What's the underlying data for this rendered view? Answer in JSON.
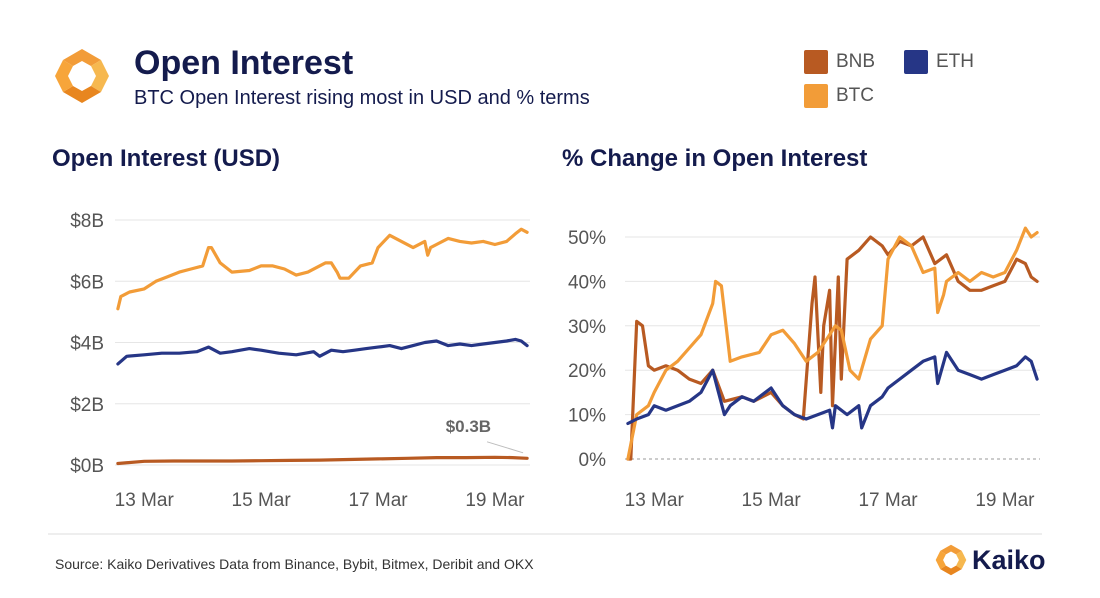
{
  "header": {
    "title": "Open Interest",
    "subtitle": "BTC Open Interest rising most in USD and % terms"
  },
  "colors": {
    "BNB": "#b85a22",
    "ETH": "#263686",
    "BTC": "#f29c38",
    "navy": "#141b4d",
    "grid": "#e6e6e6"
  },
  "legend": [
    {
      "label": "BNB",
      "color": "#b85a22"
    },
    {
      "label": "ETH",
      "color": "#263686"
    },
    {
      "label": "BTC",
      "color": "#f29c38"
    }
  ],
  "footer": {
    "source": "Source: Kaiko Derivatives Data from Binance, Bybit, Bitmex, Deribit and OKX",
    "brand": "Kaiko"
  },
  "chart_data": [
    {
      "type": "line",
      "title": "Open Interest (USD)",
      "x_ticks": [
        "13 Mar",
        "15 Mar",
        "17 Mar",
        "19 Mar"
      ],
      "x_tick_days": [
        13,
        15,
        17,
        19
      ],
      "xlim": [
        12.5,
        19.6
      ],
      "y_ticks": [
        "$0B",
        "$2B",
        "$4B",
        "$6B",
        "$8B"
      ],
      "y_tick_values": [
        0,
        2,
        4,
        6,
        8
      ],
      "ylim": [
        0,
        8
      ],
      "grid": true,
      "annotations": [
        {
          "text": "$0.3B",
          "series": "BNB",
          "value": 0.3
        }
      ],
      "series": [
        {
          "name": "BTC",
          "x": [
            12.55,
            12.6,
            12.75,
            13.0,
            13.2,
            13.4,
            13.6,
            13.8,
            14.0,
            14.1,
            14.15,
            14.3,
            14.5,
            14.8,
            15.0,
            15.2,
            15.4,
            15.6,
            15.8,
            16.0,
            16.1,
            16.2,
            16.3,
            16.35,
            16.5,
            16.7,
            16.9,
            17.0,
            17.2,
            17.4,
            17.6,
            17.8,
            17.85,
            17.9,
            18.0,
            18.2,
            18.4,
            18.6,
            18.8,
            19.0,
            19.2,
            19.35,
            19.45,
            19.55
          ],
          "values": [
            5.1,
            5.5,
            5.65,
            5.75,
            6.0,
            6.15,
            6.3,
            6.4,
            6.5,
            7.1,
            7.1,
            6.6,
            6.3,
            6.35,
            6.5,
            6.5,
            6.4,
            6.2,
            6.3,
            6.5,
            6.6,
            6.6,
            6.3,
            6.1,
            6.1,
            6.5,
            6.6,
            7.1,
            7.5,
            7.3,
            7.1,
            7.3,
            6.85,
            7.1,
            7.2,
            7.4,
            7.3,
            7.25,
            7.3,
            7.2,
            7.3,
            7.55,
            7.7,
            7.6
          ]
        },
        {
          "name": "ETH",
          "x": [
            12.55,
            12.7,
            13.0,
            13.3,
            13.6,
            13.9,
            14.1,
            14.3,
            14.5,
            14.8,
            15.0,
            15.3,
            15.6,
            15.9,
            16.0,
            16.2,
            16.4,
            16.6,
            16.8,
            17.0,
            17.2,
            17.4,
            17.6,
            17.8,
            18.0,
            18.2,
            18.4,
            18.6,
            18.8,
            19.0,
            19.2,
            19.35,
            19.45,
            19.55
          ],
          "values": [
            3.3,
            3.55,
            3.6,
            3.65,
            3.65,
            3.7,
            3.85,
            3.65,
            3.7,
            3.8,
            3.75,
            3.65,
            3.6,
            3.7,
            3.55,
            3.75,
            3.7,
            3.75,
            3.8,
            3.85,
            3.9,
            3.8,
            3.9,
            4.0,
            4.05,
            3.9,
            3.95,
            3.9,
            3.95,
            4.0,
            4.05,
            4.1,
            4.05,
            3.9
          ]
        },
        {
          "name": "BNB",
          "x": [
            12.55,
            13.0,
            13.5,
            14.0,
            14.5,
            15.0,
            15.5,
            16.0,
            16.5,
            17.0,
            17.5,
            18.0,
            18.5,
            19.0,
            19.3,
            19.55
          ],
          "values": [
            0.05,
            0.12,
            0.13,
            0.13,
            0.13,
            0.14,
            0.15,
            0.16,
            0.18,
            0.2,
            0.22,
            0.24,
            0.24,
            0.25,
            0.24,
            0.22
          ]
        }
      ]
    },
    {
      "type": "line",
      "title": "% Change in Open Interest",
      "x_ticks": [
        "13 Mar",
        "15 Mar",
        "17 Mar",
        "19 Mar"
      ],
      "x_tick_days": [
        13,
        15,
        17,
        19
      ],
      "xlim": [
        12.5,
        19.6
      ],
      "y_ticks": [
        "0%",
        "10%",
        "20%",
        "30%",
        "40%",
        "50%"
      ],
      "y_tick_values": [
        0,
        10,
        20,
        30,
        40,
        50
      ],
      "ylim": [
        0,
        50
      ],
      "zero_line": "dashed",
      "grid": true,
      "series": [
        {
          "name": "BNB",
          "x": [
            12.55,
            12.6,
            12.7,
            12.8,
            12.9,
            13.0,
            13.2,
            13.4,
            13.6,
            13.8,
            14.0,
            14.2,
            14.5,
            14.7,
            15.0,
            15.2,
            15.4,
            15.55,
            15.7,
            15.75,
            15.85,
            15.9,
            16.0,
            16.05,
            16.15,
            16.2,
            16.3,
            16.5,
            16.7,
            16.9,
            17.0,
            17.2,
            17.4,
            17.6,
            17.8,
            18.0,
            18.2,
            18.4,
            18.6,
            18.8,
            19.0,
            19.2,
            19.35,
            19.45,
            19.55
          ],
          "values": [
            0,
            0,
            31,
            30,
            21,
            20,
            21,
            20,
            18,
            17,
            20,
            13,
            14,
            13,
            15,
            12,
            10,
            9,
            35,
            41,
            15,
            30,
            38,
            12,
            41,
            18,
            45,
            47,
            50,
            48,
            46,
            49,
            48,
            50,
            44,
            46,
            40,
            38,
            38,
            39,
            40,
            45,
            44,
            41,
            40
          ]
        },
        {
          "name": "BTC",
          "x": [
            12.55,
            12.7,
            12.9,
            13.0,
            13.2,
            13.4,
            13.6,
            13.8,
            14.0,
            14.05,
            14.15,
            14.3,
            14.5,
            14.8,
            15.0,
            15.2,
            15.4,
            15.6,
            15.8,
            16.0,
            16.1,
            16.2,
            16.35,
            16.5,
            16.7,
            16.9,
            17.0,
            17.2,
            17.4,
            17.6,
            17.8,
            17.85,
            17.95,
            18.0,
            18.2,
            18.4,
            18.6,
            18.8,
            19.0,
            19.2,
            19.35,
            19.45,
            19.55
          ],
          "values": [
            0,
            10,
            12,
            15,
            20,
            22,
            25,
            28,
            35,
            40,
            39,
            22,
            23,
            24,
            28,
            29,
            26,
            22,
            24,
            28,
            30,
            29,
            20,
            18,
            27,
            30,
            45,
            50,
            48,
            42,
            43,
            33,
            37,
            40,
            42,
            40,
            42,
            41,
            42,
            47,
            52,
            50,
            51
          ]
        },
        {
          "name": "ETH",
          "x": [
            12.55,
            12.7,
            12.9,
            13.0,
            13.2,
            13.4,
            13.6,
            13.8,
            14.0,
            14.1,
            14.2,
            14.3,
            14.5,
            14.7,
            15.0,
            15.2,
            15.4,
            15.6,
            15.8,
            16.0,
            16.05,
            16.1,
            16.3,
            16.5,
            16.55,
            16.7,
            16.9,
            17.0,
            17.2,
            17.4,
            17.6,
            17.8,
            17.85,
            18.0,
            18.2,
            18.4,
            18.6,
            18.8,
            19.0,
            19.2,
            19.35,
            19.45,
            19.55
          ],
          "values": [
            8,
            9,
            10,
            12,
            11,
            12,
            13,
            15,
            20,
            15,
            10,
            12,
            14,
            13,
            16,
            12,
            10,
            9,
            10,
            11,
            7,
            12,
            10,
            12,
            7,
            12,
            14,
            16,
            18,
            20,
            22,
            23,
            17,
            24,
            20,
            19,
            18,
            19,
            20,
            21,
            23,
            22,
            18
          ]
        }
      ]
    }
  ]
}
